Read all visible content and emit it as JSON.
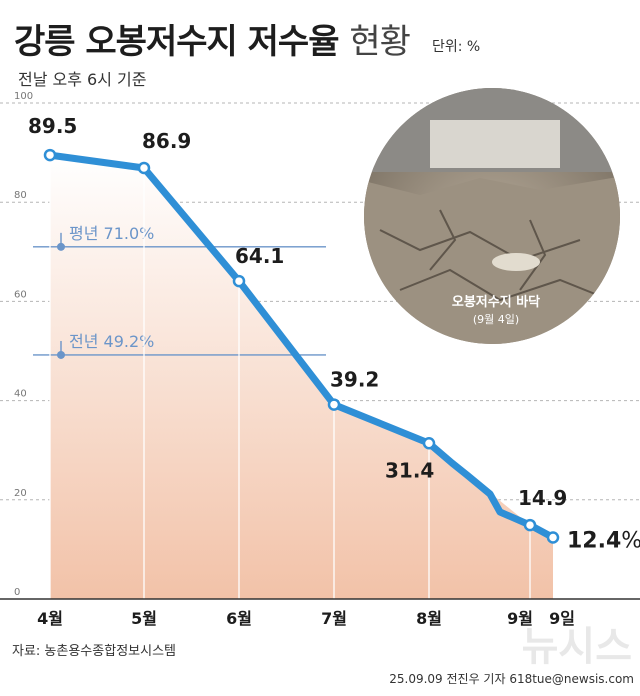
{
  "header": {
    "title": "강릉 오봉저수지 저수율",
    "title_suffix": "현황",
    "unit": "단위: %",
    "subtitle": "전날 오후 6시 기준"
  },
  "photo": {
    "caption": "오봉저수지 바닥",
    "date": "(9월 4일)"
  },
  "footer": {
    "source": "자료: 농촌용수종합정보시스템",
    "credit": "25.09.09 전진우 기자 618tue@newsis.com",
    "watermark": "뉴시스"
  },
  "colors": {
    "line": "#2f8fd6",
    "reference": "#6b95c9",
    "area_top": "#ffffff",
    "area_bottom": "#f2c2a8"
  },
  "chart_data": {
    "type": "line",
    "ylim": [
      0,
      100
    ],
    "y_ticks": [
      "100",
      "80",
      "60",
      "40",
      "20",
      "0"
    ],
    "x_ticks": [
      "4월",
      "5월",
      "6월",
      "7월",
      "8월",
      "9월",
      "9일"
    ],
    "points": [
      {
        "x": "4월",
        "y": 89.5,
        "label": "89.5"
      },
      {
        "x": "5월",
        "y": 86.9,
        "label": "86.9"
      },
      {
        "x": "6월",
        "y": 64.1,
        "label": "64.1"
      },
      {
        "x": "7월",
        "y": 39.2,
        "label": "39.2"
      },
      {
        "x": "8월",
        "y": 31.4,
        "label": "31.4"
      },
      {
        "x": "9월",
        "y": 14.9,
        "label": "14.9"
      },
      {
        "x": "9일",
        "y": 12.4,
        "label": "12.4",
        "unit": "%"
      }
    ],
    "reference_lines": [
      {
        "label": "평년",
        "value_label": "71.0%",
        "y": 71.0
      },
      {
        "label": "전년",
        "value_label": "49.2%",
        "y": 49.2
      }
    ]
  }
}
